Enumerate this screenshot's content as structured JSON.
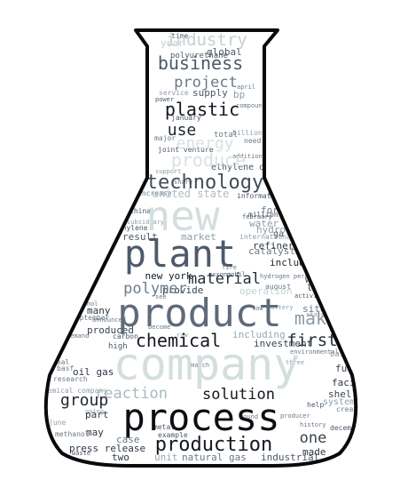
{
  "wordcloud": {
    "words": [
      {
        "text": "industry",
        "color": "#c4d2d0"
      },
      {
        "text": "business",
        "color": "#4b5868"
      },
      {
        "text": "project",
        "color": "#6d7a8a"
      },
      {
        "text": "plastic",
        "color": "#141820"
      },
      {
        "text": "use",
        "color": "#1e2430"
      },
      {
        "text": "energy",
        "color": "#d8e2e0"
      },
      {
        "text": "produce",
        "color": "#d8e2e0"
      },
      {
        "text": "technology",
        "color": "#414c5a"
      },
      {
        "text": "united state",
        "color": "#b0bfc2"
      },
      {
        "text": "new",
        "color": "#d3dfdc"
      },
      {
        "text": "plant",
        "color": "#4e5a6a"
      },
      {
        "text": "material",
        "color": "#262e3a"
      },
      {
        "text": "polymer",
        "color": "#6e7d8e"
      },
      {
        "text": "new york",
        "color": "#141820"
      },
      {
        "text": "product",
        "color": "#5f6b7b"
      },
      {
        "text": "chemical",
        "color": "#141820"
      },
      {
        "text": "first",
        "color": "#262e3a"
      },
      {
        "text": "make",
        "color": "#8d9ba6"
      },
      {
        "text": "one",
        "color": "#3a4452"
      },
      {
        "text": "company",
        "color": "#d3dfdc"
      },
      {
        "text": "reaction",
        "color": "#aab9bf"
      },
      {
        "text": "solution",
        "color": "#141820"
      },
      {
        "text": "group",
        "color": "#1e2430"
      },
      {
        "text": "process",
        "color": "#0c0e12"
      },
      {
        "text": "production",
        "color": "#141820"
      },
      {
        "text": "oil gas",
        "color": "#2e3644"
      },
      {
        "text": "hydrogen",
        "color": "#8f9da7"
      },
      {
        "text": "catalyst",
        "color": "#6b7988"
      },
      {
        "text": "refinery",
        "color": "#34404c"
      },
      {
        "text": "include",
        "color": "#1e2430"
      },
      {
        "text": "well",
        "color": "#3a4452"
      },
      {
        "text": "provide",
        "color": "#3a4452"
      },
      {
        "text": "many",
        "color": "#2e3644"
      },
      {
        "text": "produced",
        "color": "#3a4452"
      },
      {
        "text": "investment",
        "color": "#3a4452"
      },
      {
        "text": "including",
        "color": "#9aa8b0"
      },
      {
        "text": "facility",
        "color": "#2e3644"
      },
      {
        "text": "fuel",
        "color": "#3a4452"
      },
      {
        "text": "shell",
        "color": "#3a4452"
      },
      {
        "text": "press release",
        "color": "#2e3644"
      },
      {
        "text": "natural gas",
        "color": "#6b7988"
      },
      {
        "text": "industrial",
        "color": "#4b5868"
      },
      {
        "text": "made",
        "color": "#2e3644"
      },
      {
        "text": "unit",
        "color": "#9aa8b0"
      },
      {
        "text": "case",
        "color": "#6b7988"
      },
      {
        "text": "two",
        "color": "#2e3644"
      },
      {
        "text": "may",
        "color": "#2e3644"
      },
      {
        "text": "part",
        "color": "#2e3644"
      },
      {
        "text": "water",
        "color": "#8f9da7"
      },
      {
        "text": "form",
        "color": "#6b7988"
      },
      {
        "text": "market",
        "color": "#8f9da7"
      },
      {
        "text": "result",
        "color": "#4b5868"
      },
      {
        "text": "ethylene oxide",
        "color": "#4b5868"
      },
      {
        "text": "supply",
        "color": "#4b5868"
      },
      {
        "text": "global",
        "color": "#4b5868"
      },
      {
        "text": "time",
        "color": "#4b5868"
      },
      {
        "text": "year",
        "color": "#c4d2d0"
      },
      {
        "text": "polyurethane",
        "color": "#4b5868"
      },
      {
        "text": "bp",
        "color": "#8f9da7"
      },
      {
        "text": "service",
        "color": "#8f9da7"
      },
      {
        "text": "total",
        "color": "#6b7988"
      },
      {
        "text": "january",
        "color": "#4b5868"
      },
      {
        "text": "billion",
        "color": "#8f9da7"
      },
      {
        "text": "million",
        "color": "#4b5868"
      },
      {
        "text": "operation",
        "color": "#c4d2d0"
      },
      {
        "text": "site",
        "color": "#6b7988"
      },
      {
        "text": "high",
        "color": "#4b5868"
      },
      {
        "text": "september",
        "color": "#6b7988"
      },
      {
        "text": "research",
        "color": "#6b7988"
      },
      {
        "text": "chemical company",
        "color": "#8f9da7"
      },
      {
        "text": "system",
        "color": "#8f9da7"
      },
      {
        "text": "based",
        "color": "#8f9da7"
      },
      {
        "text": "example",
        "color": "#4b5868"
      },
      {
        "text": "metal",
        "color": "#4b5868"
      },
      {
        "text": "increase",
        "color": "#6b7988"
      },
      {
        "text": "china",
        "color": "#4b5868"
      },
      {
        "text": "support",
        "color": "#8f9da7"
      },
      {
        "text": "joint venture",
        "color": "#4b5868"
      },
      {
        "text": "information",
        "color": "#4b5868"
      },
      {
        "text": "international",
        "color": "#8f9da7"
      },
      {
        "text": "august",
        "color": "#6b7988"
      },
      {
        "text": "april",
        "color": "#6b7988"
      },
      {
        "text": "need",
        "color": "#6b7988"
      },
      {
        "text": "major",
        "color": "#6b7988"
      },
      {
        "text": "ethylene",
        "color": "#4b5868"
      },
      {
        "text": "december",
        "color": "#4b5868"
      },
      {
        "text": "create",
        "color": "#6b7988"
      },
      {
        "text": "help",
        "color": "#4b5868"
      },
      {
        "text": "basf",
        "color": "#6b7988"
      },
      {
        "text": "methanol",
        "color": "#6b7988"
      },
      {
        "text": "deal",
        "color": "#6b7988"
      },
      {
        "text": "june",
        "color": "#8f9da7"
      },
      {
        "text": "february",
        "color": "#4b5868"
      },
      {
        "text": "exxonmobil",
        "color": "#4b5868"
      },
      {
        "text": "compound",
        "color": "#6b7988"
      },
      {
        "text": "power",
        "color": "#4b5868"
      },
      {
        "text": "announced",
        "color": "#6b7988"
      },
      {
        "text": "demand",
        "color": "#6b7988"
      },
      {
        "text": "carbon",
        "color": "#4b5868"
      },
      {
        "text": "become",
        "color": "#6b7988"
      },
      {
        "text": "subsidiary",
        "color": "#8f9da7"
      },
      {
        "text": "activity",
        "color": "#4b5868"
      },
      {
        "text": "partner",
        "color": "#8f9da7"
      },
      {
        "text": "addition",
        "color": "#6b7988"
      },
      {
        "text": "see",
        "color": "#6b7988"
      },
      {
        "text": "producer",
        "color": "#6b7988"
      },
      {
        "text": "history",
        "color": "#6b7988"
      },
      {
        "text": "environmental",
        "color": "#6b7988"
      },
      {
        "text": "battery",
        "color": "#8f9da7"
      },
      {
        "text": "three",
        "color": "#8f9da7"
      },
      {
        "text": "going",
        "color": "#8f9da7"
      },
      {
        "text": "waste",
        "color": "#4b5868"
      },
      {
        "text": "found",
        "color": "#6b7988"
      },
      {
        "text": "ethanol",
        "color": "#6b7988"
      },
      {
        "text": "low",
        "color": "#6b7988"
      },
      {
        "text": "share",
        "color": "#6b7988"
      },
      {
        "text": "le",
        "color": "#1e2430"
      },
      {
        "text": "ga",
        "color": "#4b5868"
      },
      {
        "text": "march",
        "color": "#6b7988"
      },
      {
        "text": "state",
        "color": "#8f9da7"
      },
      {
        "text": "fire",
        "color": "#6b7988"
      },
      {
        "text": "hydrogen peroxide",
        "color": "#6b7988"
      },
      {
        "text": "raw",
        "color": "#8f9da7"
      }
    ]
  }
}
